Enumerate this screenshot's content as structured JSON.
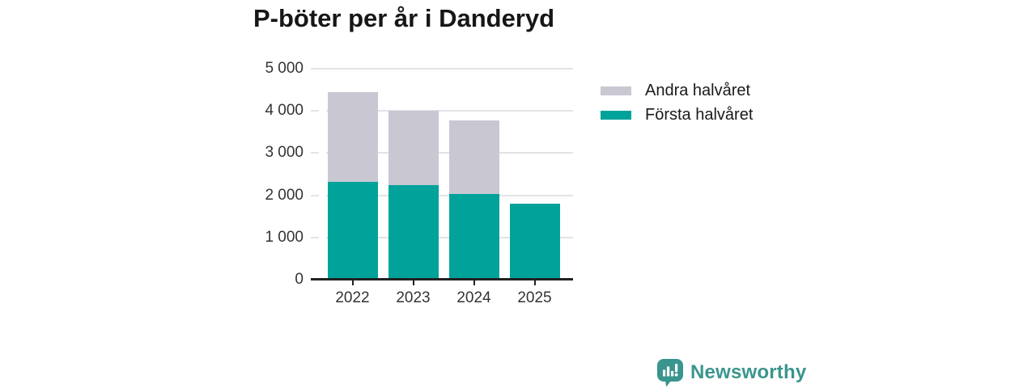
{
  "title": "P-böter per år i Danderyd",
  "chart_data": {
    "type": "bar",
    "stacked": true,
    "title": "P-böter per år i Danderyd",
    "categories": [
      "2022",
      "2023",
      "2024",
      "2025"
    ],
    "series": [
      {
        "name": "Första halvåret",
        "key": "forsta-halvaret",
        "color": "#00a29a",
        "values": [
          2320,
          2250,
          2040,
          1800
        ]
      },
      {
        "name": "Andra halvåret",
        "key": "andra-halvaret",
        "color": "#c8c7d2",
        "values": [
          2120,
          1760,
          1740,
          0
        ]
      }
    ],
    "stack_totals": [
      4440,
      4010,
      3780,
      1800
    ],
    "xlabel": "",
    "ylabel": "",
    "ylim": [
      0,
      5000
    ],
    "ytick_step": 1000,
    "ytick_labels": [
      "0",
      "1 000",
      "2 000",
      "3 000",
      "4 000",
      "5 000"
    ],
    "grid": true,
    "legend_position": "right-of-plot"
  },
  "legend": {
    "items": [
      {
        "label": "Andra halvåret",
        "key": "andra-halvaret",
        "color": "#c8c7d2"
      },
      {
        "label": "Första halvåret",
        "key": "forsta-halvaret",
        "color": "#00a29a"
      }
    ]
  },
  "footer": {
    "brand": "Newsworthy"
  },
  "colors": {
    "teal": "#00a29a",
    "gray": "#c8c7d2",
    "title_text": "#161616",
    "axis_text": "#333333",
    "gridline": "#e3e3e7",
    "axis_line": "#222222",
    "brand_teal": "#3a958e",
    "background": "#ffffff"
  }
}
